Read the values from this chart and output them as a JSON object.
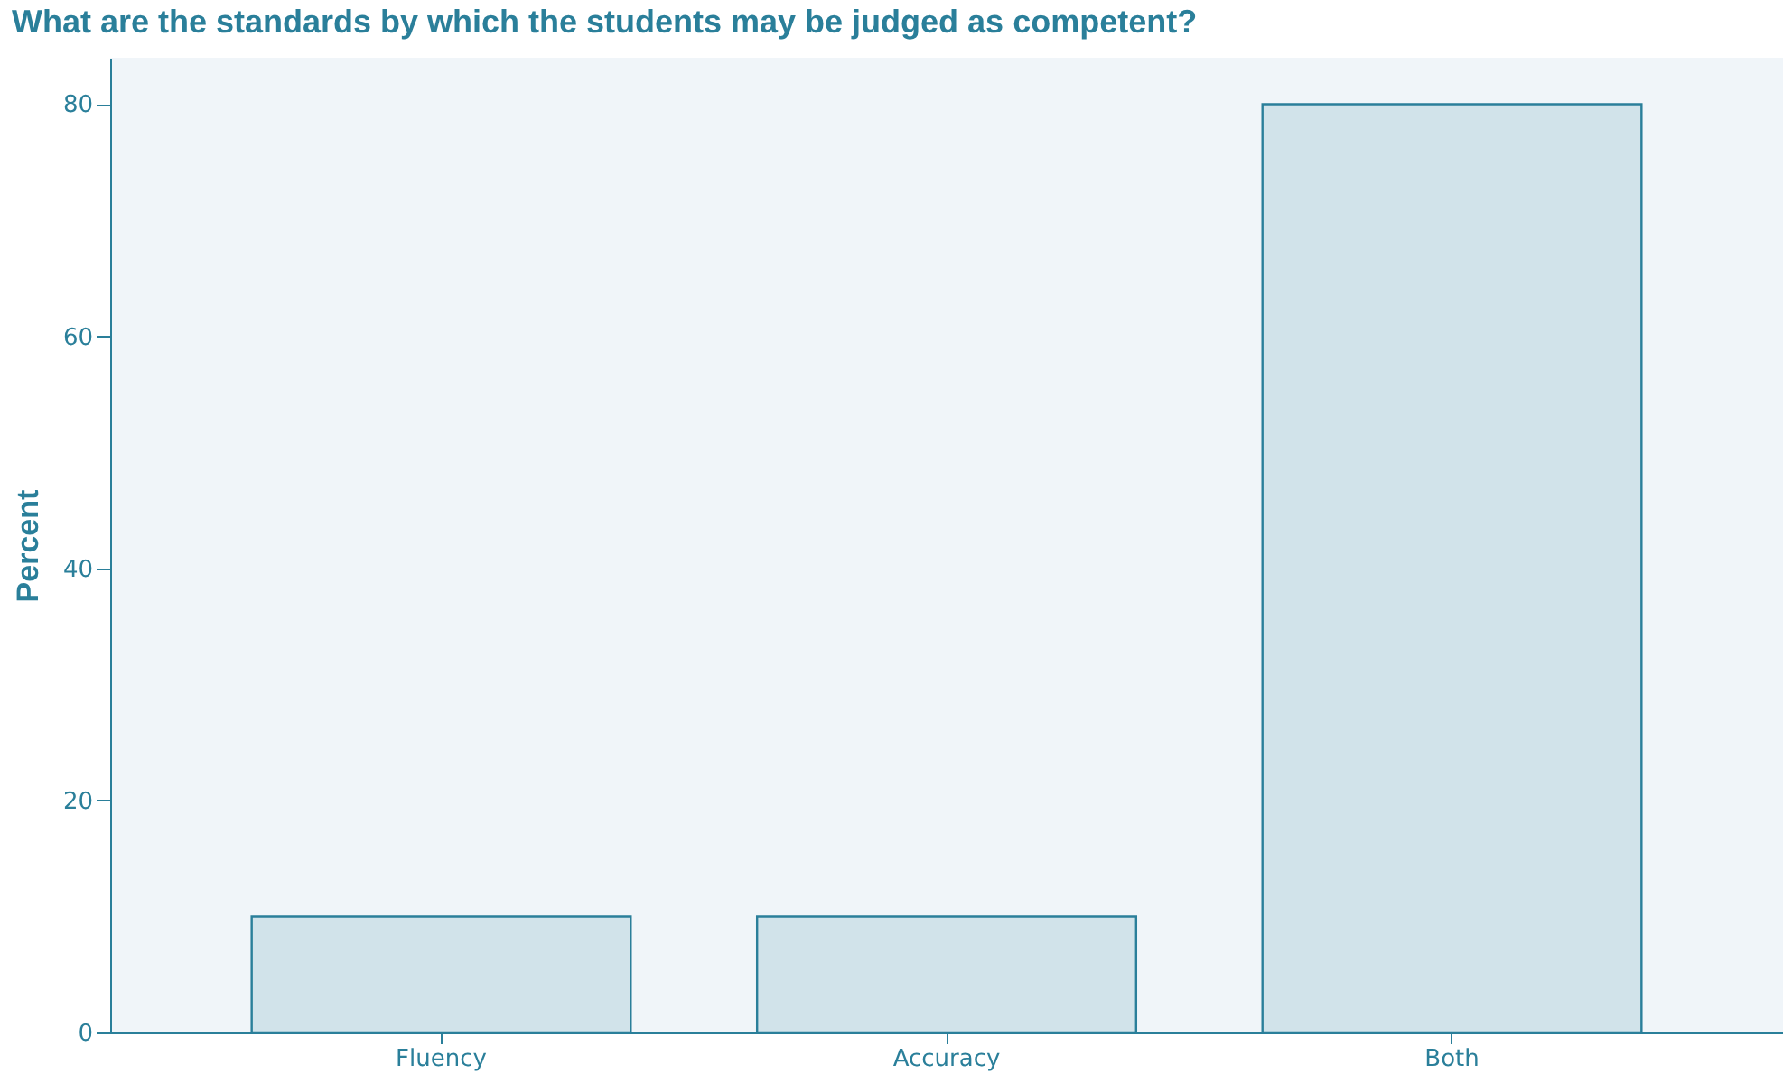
{
  "chart_data": {
    "type": "bar",
    "title": "What are the standards by which the students may be judged as competent?",
    "ylabel": "Percent",
    "categories": [
      "Fluency",
      "Accuracy",
      "Both"
    ],
    "values": [
      10,
      10,
      80
    ],
    "color": "#d1e3ea",
    "ylim": [
      0,
      84
    ],
    "yticks": [
      0,
      20,
      40,
      60,
      80
    ],
    "grid": false
  }
}
